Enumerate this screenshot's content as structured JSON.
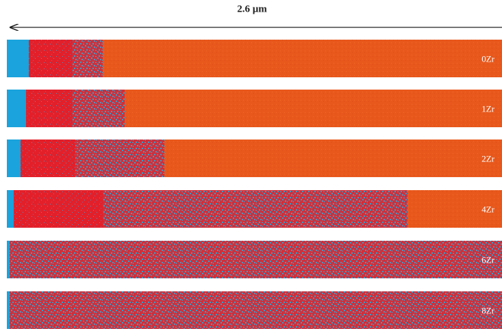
{
  "scale_label": "2.6 μm",
  "strips": [
    {
      "label": "0Zr"
    },
    {
      "label": "1Zr"
    },
    {
      "label": "2Zr"
    },
    {
      "label": "4Zr"
    },
    {
      "label": "6Zr"
    },
    {
      "label": "8Zr"
    }
  ]
}
